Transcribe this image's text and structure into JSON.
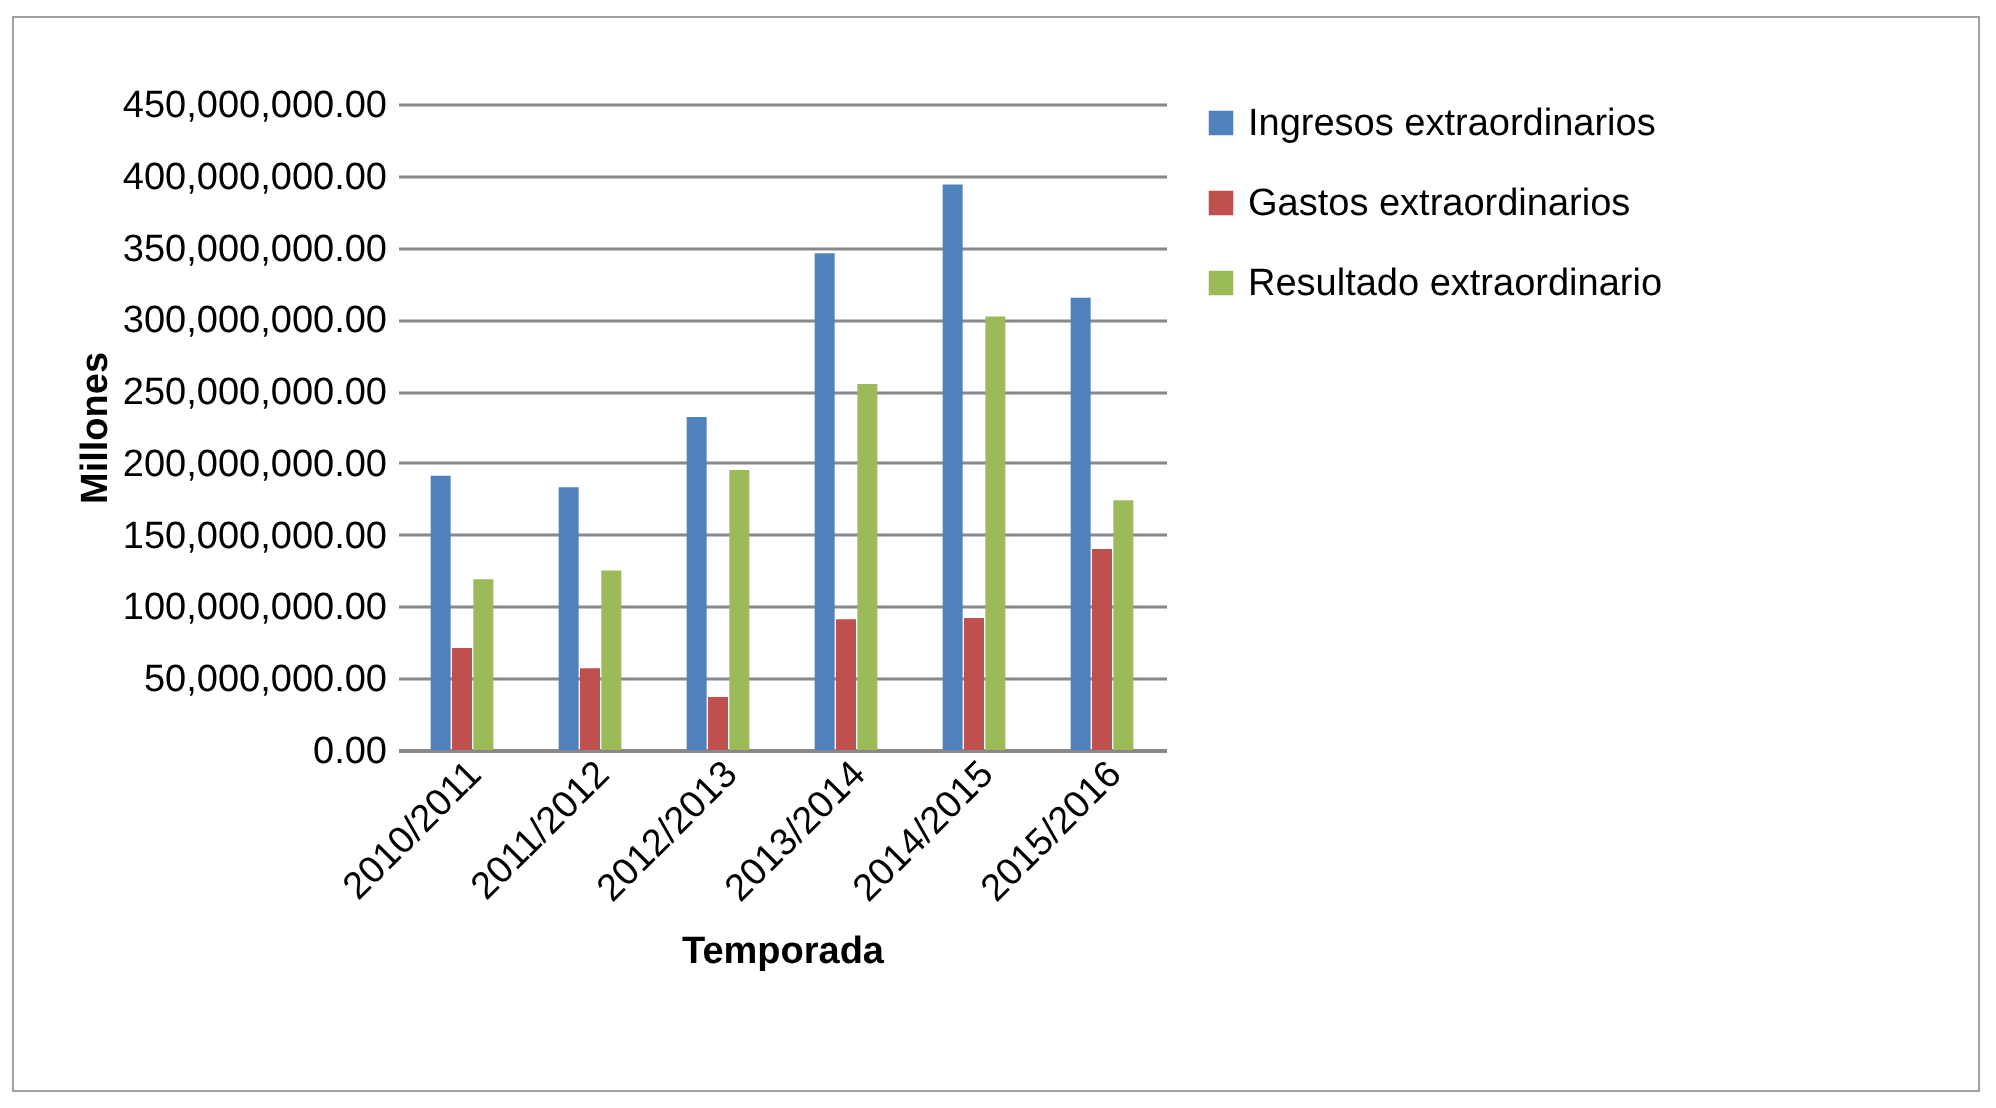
{
  "chart_data": {
    "type": "bar",
    "xlabel": "Temporada",
    "ylabel": "Millones",
    "categories": [
      "2010/2011",
      "2011/2012",
      "2012/2013",
      "2013/2014",
      "2014/2015",
      "2015/2016"
    ],
    "series": [
      {
        "name": "Ingresos extraordinarios",
        "color": "#4f81bd",
        "values": [
          191000000,
          183000000,
          232000000,
          346000000,
          394000000,
          315000000
        ]
      },
      {
        "name": "Gastos extraordinarios",
        "color": "#c0504d",
        "values": [
          71000000,
          57000000,
          37000000,
          91000000,
          92000000,
          140000000
        ]
      },
      {
        "name": "Resultado extraordinario",
        "color": "#9bbb59",
        "values": [
          119000000,
          125000000,
          195000000,
          255000000,
          302000000,
          174000000
        ]
      }
    ],
    "ylim": [
      0,
      450000000
    ],
    "yticks": [
      {
        "value": 0,
        "label": "0.00"
      },
      {
        "value": 50000000,
        "label": "50,000,000.00"
      },
      {
        "value": 100000000,
        "label": "100,000,000.00"
      },
      {
        "value": 150000000,
        "label": "150,000,000.00"
      },
      {
        "value": 200000000,
        "label": "200,000,000.00"
      },
      {
        "value": 250000000,
        "label": "250,000,000.00"
      },
      {
        "value": 300000000,
        "label": "300,000,000.00"
      },
      {
        "value": 350000000,
        "label": "350,000,000.00"
      },
      {
        "value": 400000000,
        "label": "400,000,000.00"
      },
      {
        "value": 450000000,
        "label": "450,000,000.00"
      }
    ],
    "grid": true,
    "legend": "right"
  }
}
